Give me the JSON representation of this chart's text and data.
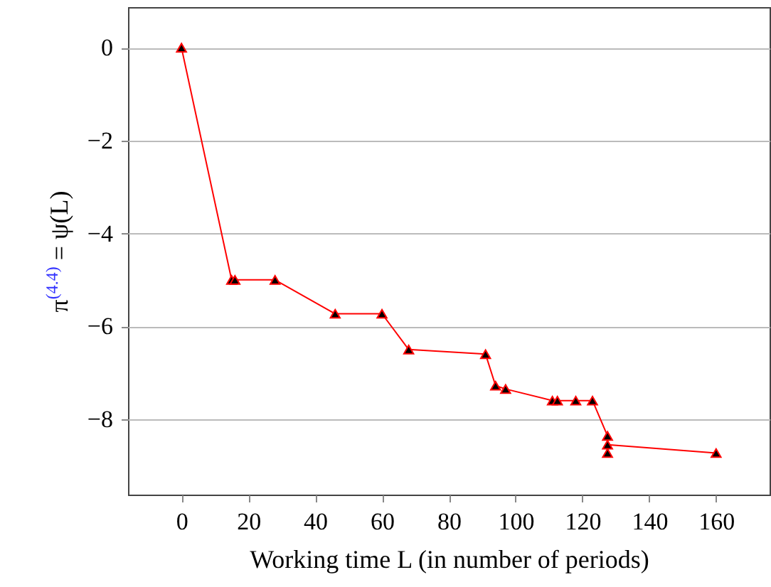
{
  "chart_data": {
    "type": "line",
    "xlabel": "Working time L (in number of periods)",
    "ylabel": "π$^{(4.4)}$ = ψ(L)",
    "x": [
      0,
      15,
      16,
      28,
      46,
      60,
      68,
      91,
      94,
      97,
      111,
      112.5,
      118,
      123,
      127.5,
      127.5,
      127.5,
      160
    ],
    "series": [
      {
        "color": "#ff0000",
        "values": [
          0,
          -5,
          -5,
          -5,
          -5.73,
          -5.73,
          -6.5,
          -6.6,
          -7.28,
          -7.35,
          -7.6,
          -7.6,
          -7.6,
          -7.6,
          -8.36,
          -8.73,
          -8.55,
          -8.73
        ]
      }
    ],
    "xlim": [
      -16,
      176
    ],
    "ylim": [
      -9.625,
      0.875
    ],
    "xticks": [
      0,
      20,
      40,
      60,
      80,
      100,
      120,
      140,
      160
    ],
    "yticks": [
      -8,
      -6,
      -4,
      -2,
      0
    ],
    "grid": "y",
    "marker": "triangle",
    "line_style": "solid"
  }
}
